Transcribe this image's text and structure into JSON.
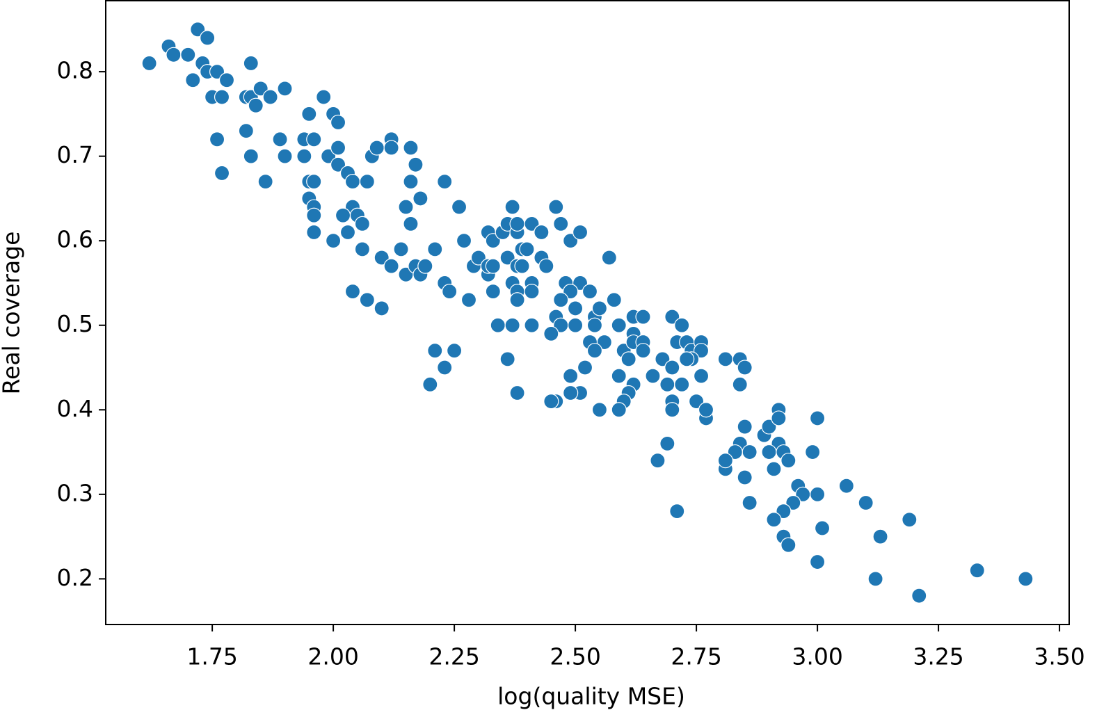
{
  "chart_data": {
    "type": "scatter",
    "x_label": "log(quality MSE)",
    "y_label": "Real coverage",
    "xlim": [
      1.53,
      3.52
    ],
    "ylim": [
      0.146,
      0.884
    ],
    "xticks": [
      1.75,
      {
        "value": 2.0,
        "label": "2.00"
      },
      2.25,
      {
        "value": 2.5,
        "label": "2.50"
      },
      2.75,
      {
        "value": 3.0,
        "label": "3.00"
      },
      3.25,
      {
        "value": 3.5,
        "label": "3.50"
      }
    ],
    "yticks": [
      0.2,
      0.3,
      0.4,
      0.5,
      0.6,
      0.7,
      0.8
    ],
    "grid": false,
    "series": [
      {
        "color": "#1f77b4",
        "x": [
          1.62,
          1.66,
          1.67,
          1.7,
          1.72,
          1.74,
          1.71,
          1.73,
          1.74,
          1.76,
          1.78,
          1.75,
          1.77,
          1.83,
          1.82,
          1.83,
          1.84,
          1.85,
          1.87,
          1.9,
          1.82,
          1.76,
          1.83,
          1.77,
          1.86,
          1.89,
          1.9,
          1.94,
          1.95,
          1.98,
          2.0,
          2.01,
          1.94,
          1.96,
          1.99,
          2.01,
          2.01,
          1.95,
          1.96,
          1.95,
          1.96,
          1.96,
          1.96,
          2.0,
          2.03,
          2.04,
          2.07,
          2.04,
          2.05,
          2.02,
          2.03,
          2.06,
          2.06,
          2.08,
          2.09,
          2.12,
          2.12,
          2.16,
          2.17,
          2.16,
          2.15,
          2.18,
          2.16,
          2.14,
          2.1,
          2.12,
          2.15,
          2.17,
          2.18,
          2.19,
          2.21,
          2.04,
          2.07,
          2.1,
          2.23,
          2.26,
          2.26,
          2.27,
          2.23,
          2.24,
          2.28,
          2.29,
          2.3,
          2.32,
          2.32,
          2.32,
          2.33,
          2.35,
          2.33,
          2.33,
          2.34,
          2.21,
          2.25,
          2.23,
          2.2,
          2.36,
          2.37,
          2.38,
          2.38,
          2.39,
          2.36,
          2.38,
          2.39,
          2.37,
          2.38,
          2.38,
          2.41,
          2.41,
          2.4,
          2.41,
          2.43,
          2.43,
          2.44,
          2.37,
          2.41,
          2.36,
          2.38,
          2.46,
          2.47,
          2.49,
          2.51,
          2.57,
          2.48,
          2.51,
          2.49,
          2.53,
          2.47,
          2.5,
          2.46,
          2.47,
          2.5,
          2.54,
          2.55,
          2.54,
          2.56,
          2.53,
          2.54,
          2.58,
          2.45,
          2.52,
          2.49,
          2.51,
          2.49,
          2.46,
          2.45,
          2.55,
          2.59,
          2.59,
          2.6,
          2.62,
          2.64,
          2.62,
          2.62,
          2.64,
          2.64,
          2.61,
          2.59,
          2.62,
          2.61,
          2.6,
          2.59,
          2.66,
          2.68,
          2.7,
          2.72,
          2.71,
          2.73,
          2.74,
          2.76,
          2.76,
          2.74,
          2.73,
          2.7,
          2.69,
          2.72,
          2.76,
          2.7,
          2.7,
          2.75,
          2.77,
          2.77,
          2.67,
          2.69,
          2.71,
          2.81,
          2.84,
          2.85,
          2.84,
          2.85,
          2.84,
          2.86,
          2.83,
          2.81,
          2.81,
          2.85,
          2.86,
          2.89,
          2.9,
          2.92,
          2.92,
          2.92,
          2.9,
          2.93,
          2.94,
          2.91,
          2.99,
          3.0,
          2.96,
          2.97,
          3.0,
          2.95,
          2.93,
          2.91,
          2.93,
          2.94,
          3.0,
          3.01,
          3.06,
          3.1,
          3.13,
          3.12,
          3.19,
          3.21,
          3.33,
          3.43
        ],
        "values": [
          0.81,
          0.83,
          0.82,
          0.82,
          0.85,
          0.84,
          0.79,
          0.81,
          0.8,
          0.8,
          0.79,
          0.77,
          0.77,
          0.81,
          0.77,
          0.77,
          0.76,
          0.78,
          0.77,
          0.78,
          0.73,
          0.72,
          0.7,
          0.68,
          0.67,
          0.72,
          0.7,
          0.7,
          0.75,
          0.77,
          0.75,
          0.74,
          0.72,
          0.72,
          0.7,
          0.71,
          0.69,
          0.67,
          0.67,
          0.65,
          0.64,
          0.63,
          0.61,
          0.6,
          0.68,
          0.67,
          0.67,
          0.64,
          0.63,
          0.63,
          0.61,
          0.62,
          0.59,
          0.7,
          0.71,
          0.72,
          0.71,
          0.71,
          0.69,
          0.67,
          0.64,
          0.65,
          0.62,
          0.59,
          0.58,
          0.57,
          0.56,
          0.57,
          0.56,
          0.57,
          0.59,
          0.54,
          0.53,
          0.52,
          0.67,
          0.64,
          0.64,
          0.6,
          0.55,
          0.54,
          0.53,
          0.57,
          0.58,
          0.61,
          0.56,
          0.57,
          0.6,
          0.61,
          0.57,
          0.54,
          0.5,
          0.47,
          0.47,
          0.45,
          0.43,
          0.62,
          0.64,
          0.61,
          0.62,
          0.59,
          0.58,
          0.57,
          0.57,
          0.55,
          0.54,
          0.53,
          0.55,
          0.54,
          0.59,
          0.62,
          0.61,
          0.58,
          0.57,
          0.5,
          0.5,
          0.46,
          0.42,
          0.64,
          0.62,
          0.6,
          0.61,
          0.58,
          0.55,
          0.55,
          0.54,
          0.54,
          0.53,
          0.52,
          0.51,
          0.5,
          0.5,
          0.51,
          0.52,
          0.5,
          0.48,
          0.48,
          0.47,
          0.53,
          0.49,
          0.45,
          0.44,
          0.42,
          0.42,
          0.41,
          0.41,
          0.4,
          0.5,
          0.5,
          0.47,
          0.51,
          0.51,
          0.49,
          0.48,
          0.48,
          0.47,
          0.46,
          0.44,
          0.43,
          0.42,
          0.41,
          0.4,
          0.44,
          0.46,
          0.51,
          0.5,
          0.48,
          0.48,
          0.47,
          0.48,
          0.47,
          0.46,
          0.46,
          0.45,
          0.43,
          0.43,
          0.44,
          0.41,
          0.4,
          0.41,
          0.39,
          0.4,
          0.34,
          0.36,
          0.28,
          0.46,
          0.46,
          0.45,
          0.43,
          0.38,
          0.36,
          0.35,
          0.35,
          0.33,
          0.34,
          0.32,
          0.29,
          0.37,
          0.38,
          0.4,
          0.39,
          0.36,
          0.35,
          0.35,
          0.34,
          0.33,
          0.35,
          0.39,
          0.31,
          0.3,
          0.3,
          0.29,
          0.28,
          0.27,
          0.25,
          0.24,
          0.22,
          0.26,
          0.31,
          0.29,
          0.25,
          0.2,
          0.27,
          0.18,
          0.21,
          0.2
        ]
      }
    ]
  }
}
